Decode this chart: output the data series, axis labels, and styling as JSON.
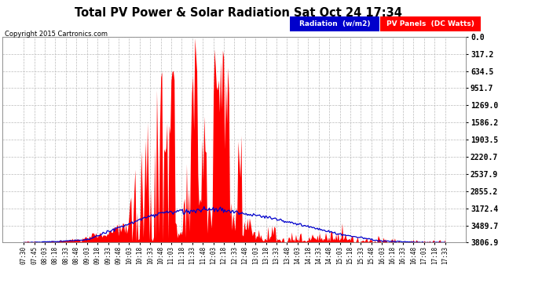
{
  "title": "Total PV Power & Solar Radiation Sat Oct 24 17:34",
  "copyright": "Copyright 2015 Cartronics.com",
  "ylabel_right": [
    "3806.9",
    "3489.7",
    "3172.4",
    "2855.2",
    "2537.9",
    "2220.7",
    "1903.5",
    "1586.2",
    "1269.0",
    "951.7",
    "634.5",
    "317.2",
    "0.0"
  ],
  "ymax": 3806.9,
  "ymin": 0.0,
  "yticks": [
    0.0,
    317.2,
    634.5,
    951.7,
    1269.0,
    1586.2,
    1903.5,
    2220.7,
    2537.9,
    2855.2,
    3172.4,
    3489.7,
    3806.9
  ],
  "bg_color": "#ffffff",
  "plot_bg_color": "#ffffff",
  "grid_color": "#bbbbbb",
  "pv_color": "#ff0000",
  "rad_color": "#0000cc",
  "legend_rad_bg": "#0000cc",
  "legend_pv_bg": "#ff0000",
  "legend_rad_text": "Radiation  (w/m2)",
  "legend_pv_text": "PV Panels  (DC Watts)",
  "x_labels": [
    "07:30",
    "07:45",
    "08:03",
    "08:18",
    "08:33",
    "08:48",
    "09:03",
    "09:18",
    "09:33",
    "09:48",
    "10:03",
    "10:18",
    "10:33",
    "10:48",
    "11:03",
    "11:18",
    "11:33",
    "11:48",
    "12:03",
    "12:18",
    "12:33",
    "12:48",
    "13:03",
    "13:18",
    "13:33",
    "13:48",
    "14:03",
    "14:18",
    "14:33",
    "14:48",
    "15:03",
    "15:18",
    "15:33",
    "15:48",
    "16:03",
    "16:18",
    "16:33",
    "16:48",
    "17:03",
    "17:18",
    "17:33"
  ]
}
